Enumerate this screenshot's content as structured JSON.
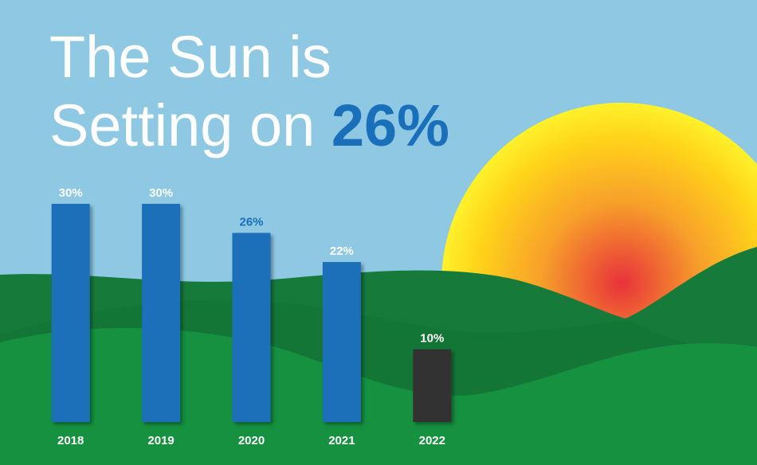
{
  "chart_data": {
    "type": "bar",
    "title_lines": [
      "The Sun is",
      "Setting on"
    ],
    "title_highlight": "26%",
    "highlight_color": "#1a6fba",
    "categories": [
      "2018",
      "2019",
      "2020",
      "2021",
      "2022"
    ],
    "values": [
      30,
      30,
      26,
      22,
      10
    ],
    "value_labels": [
      "30%",
      "30%",
      "26%",
      "22%",
      "10%"
    ],
    "colors": [
      "#1a6fba",
      "#1a6fba",
      "#1a6fba",
      "#1a6fba",
      "#333333"
    ],
    "value_label_colors": [
      "#ffffff",
      "#ffffff",
      "#1a6fba",
      "#ffffff",
      "#ffffff"
    ]
  }
}
